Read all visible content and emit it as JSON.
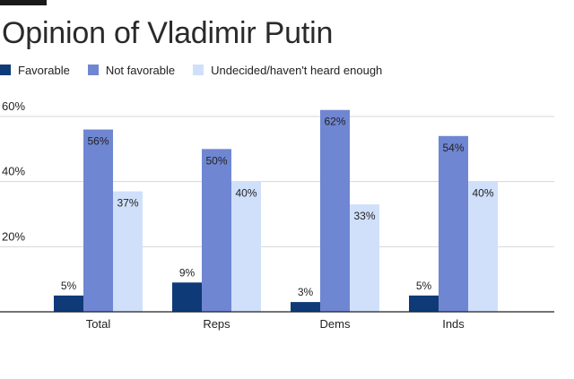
{
  "chart_data": {
    "type": "bar",
    "title": "Opinion of Vladimir Putin",
    "categories": [
      "Total",
      "Reps",
      "Dems",
      "Inds"
    ],
    "series": [
      {
        "name": "Favorable",
        "color": "#0e3a78",
        "values": [
          5,
          9,
          3,
          5
        ],
        "labels": [
          "5%",
          "9%",
          "3%",
          "5%"
        ]
      },
      {
        "name": "Not favorable",
        "color": "#6f86d2",
        "values": [
          56,
          50,
          62,
          54
        ],
        "labels": [
          "56%",
          "50%",
          "62%",
          "54%"
        ]
      },
      {
        "name": "Undecided/haven't heard enough",
        "color": "#d0e0fb",
        "values": [
          37,
          40,
          33,
          40
        ],
        "labels": [
          "37%",
          "40%",
          "33%",
          "40%"
        ]
      }
    ],
    "yticks": [
      20,
      40,
      60
    ],
    "ytick_labels": [
      "20%",
      "40%",
      "60%"
    ],
    "ylim": [
      0,
      60
    ],
    "xlabel": "",
    "ylabel": "",
    "grid": true,
    "legend_position": "top-left"
  }
}
